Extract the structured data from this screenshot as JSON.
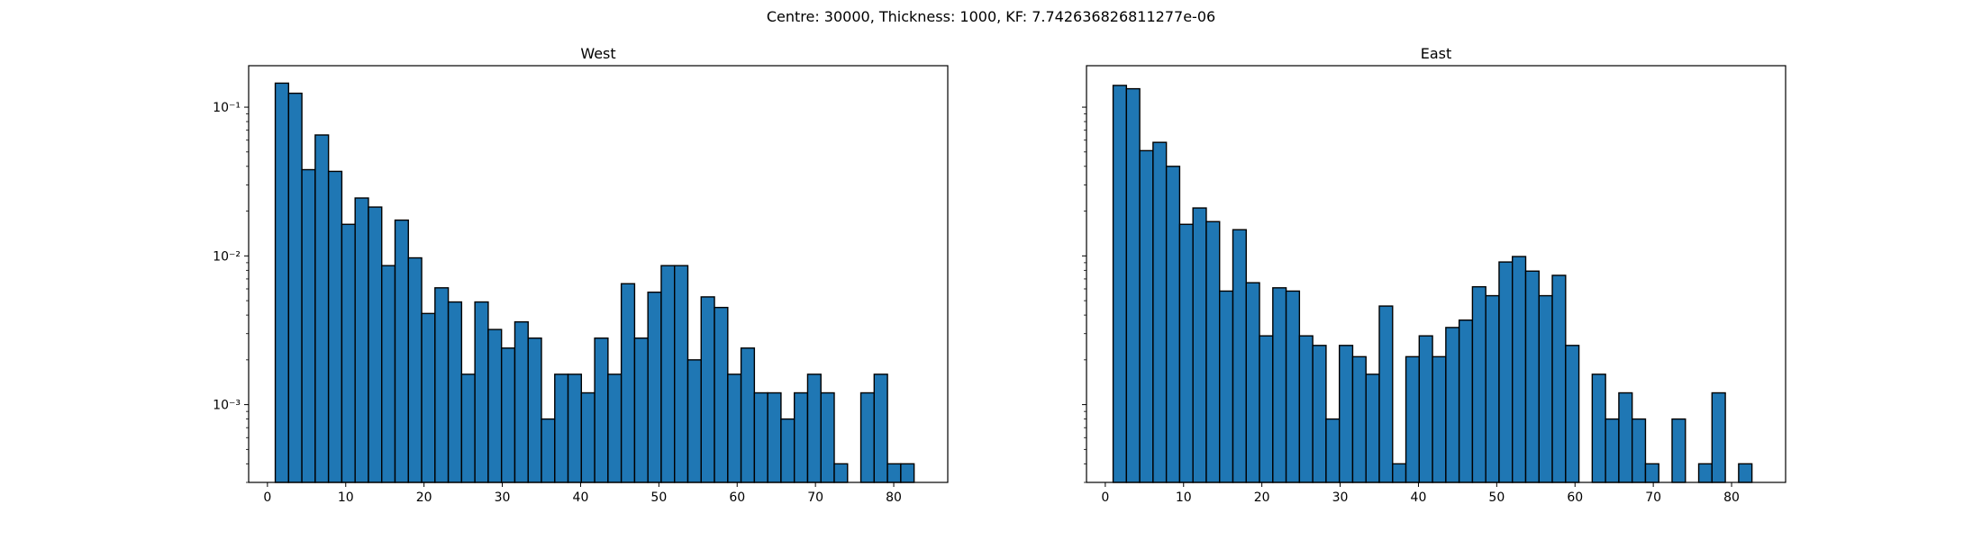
{
  "suptitle": "Centre: 30000, Thickness: 1000, KF: 7.742636826811277e-06",
  "bar_color": "#1f77b4",
  "edge_color": "#000000",
  "chart_data": [
    {
      "type": "bar",
      "title": "West",
      "xlabel": "",
      "ylabel": "",
      "yscale": "log",
      "xlim": [
        -2.4,
        86.9
      ],
      "ylim": [
        0.0003,
        0.19
      ],
      "x_ticks": [
        0,
        10,
        20,
        30,
        40,
        50,
        60,
        70,
        80
      ],
      "y_ticks": [
        {
          "value": 0.1,
          "label": "10⁻¹"
        },
        {
          "value": 0.01,
          "label": "10⁻²"
        },
        {
          "value": 0.001,
          "label": "10⁻³"
        }
      ],
      "show_y_tick_labels": true,
      "bin_edges": [
        1,
        2.7,
        4.4,
        6.1,
        7.8,
        9.5,
        11.2,
        12.9,
        14.6,
        16.3,
        18,
        19.7,
        21.4,
        23.1,
        24.8,
        26.5,
        28.2,
        29.9,
        31.6,
        33.3,
        35,
        36.7,
        38.4,
        40.1,
        41.8,
        43.5,
        45.2,
        46.9,
        48.6,
        50.3,
        52,
        53.7,
        55.4,
        57.1,
        58.8,
        60.5,
        62.2,
        63.9,
        65.6,
        67.3,
        69,
        70.7,
        72.4,
        74.1,
        75.8,
        77.5,
        79.2,
        80.9,
        82.6
      ],
      "values": [
        0.145,
        0.124,
        0.038,
        0.065,
        0.037,
        0.0163,
        0.0245,
        0.0213,
        0.0086,
        0.0174,
        0.0097,
        0.0041,
        0.0061,
        0.0049,
        0.0016,
        0.0049,
        0.0032,
        0.0024,
        0.0036,
        0.0028,
        0.0008,
        0.0016,
        0.0016,
        0.0012,
        0.0028,
        0.0016,
        0.0065,
        0.0028,
        0.0057,
        0.0086,
        0.0086,
        0.002,
        0.0053,
        0.0045,
        0.0016,
        0.0024,
        0.0012,
        0.0012,
        0.0008,
        0.0012,
        0.0016,
        0.0012,
        0.0004,
        0,
        0.0012,
        0.0016,
        0.0004,
        0.0004,
        0.0004
      ]
    },
    {
      "type": "bar",
      "title": "East",
      "xlabel": "",
      "ylabel": "",
      "yscale": "log",
      "xlim": [
        -2.4,
        86.9
      ],
      "ylim": [
        0.0003,
        0.19
      ],
      "x_ticks": [
        0,
        10,
        20,
        30,
        40,
        50,
        60,
        70,
        80
      ],
      "y_ticks": [
        {
          "value": 0.1,
          "label": "10⁻¹"
        },
        {
          "value": 0.01,
          "label": "10⁻²"
        },
        {
          "value": 0.001,
          "label": "10⁻³"
        }
      ],
      "show_y_tick_labels": false,
      "bin_edges": [
        1,
        2.7,
        4.4,
        6.1,
        7.8,
        9.5,
        11.2,
        12.9,
        14.6,
        16.3,
        18,
        19.7,
        21.4,
        23.1,
        24.8,
        26.5,
        28.2,
        29.9,
        31.6,
        33.3,
        35,
        36.7,
        38.4,
        40.1,
        41.8,
        43.5,
        45.2,
        46.9,
        48.6,
        50.3,
        52,
        53.7,
        55.4,
        57.1,
        58.8,
        60.5,
        62.2,
        63.9,
        65.6,
        67.3,
        69,
        70.7,
        72.4,
        74.1,
        75.8,
        77.5,
        79.2,
        80.9,
        82.6
      ],
      "values": [
        0.14,
        0.133,
        0.051,
        0.058,
        0.04,
        0.0163,
        0.021,
        0.017,
        0.0058,
        0.015,
        0.0066,
        0.0029,
        0.0061,
        0.0058,
        0.0029,
        0.0025,
        0.0008,
        0.0025,
        0.0021,
        0.0016,
        0.0046,
        0.0004,
        0.0021,
        0.0029,
        0.0021,
        0.0033,
        0.0037,
        0.0062,
        0.0054,
        0.0091,
        0.0099,
        0.0079,
        0.0054,
        0.0074,
        0.0025,
        0,
        0.0016,
        0.0008,
        0.0012,
        0.0008,
        0.0004,
        0,
        0.0008,
        0,
        0.0004,
        0.0012,
        0,
        0.0004,
        0.0004
      ]
    }
  ]
}
